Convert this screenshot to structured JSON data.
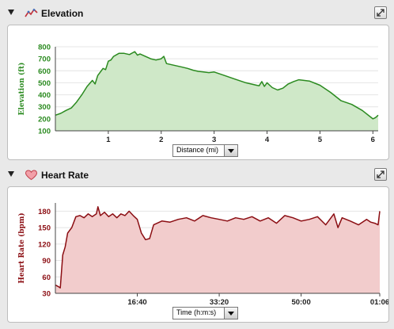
{
  "elevation_panel": {
    "title": "Elevation",
    "icon": "elevation-chart-icon",
    "x_axis_selector": "Distance (mi)",
    "accent": "#2a8a1f",
    "fill": "#cfe8c8"
  },
  "heart_panel": {
    "title": "Heart Rate",
    "icon": "heart-icon",
    "x_axis_selector": "Time (h:m:s)",
    "accent": "#8b0d12",
    "fill": "#f2cccc"
  },
  "chart_data": [
    {
      "type": "area",
      "title": "",
      "xlabel": "",
      "ylabel": "Elevation (ft)",
      "xlim": [
        0,
        6.1
      ],
      "ylim": [
        100,
        800
      ],
      "x_ticks": [
        "1",
        "2",
        "3",
        "4",
        "5",
        "6"
      ],
      "y_ticks": [
        "100",
        "200",
        "300",
        "400",
        "500",
        "600",
        "700",
        "800"
      ],
      "grid": true,
      "series": [
        {
          "x": [
            0,
            0.1,
            0.2,
            0.3,
            0.4,
            0.5,
            0.6,
            0.7,
            0.75,
            0.8,
            0.9,
            0.95,
            1.0,
            1.05,
            1.1,
            1.2,
            1.3,
            1.4,
            1.5,
            1.55,
            1.6,
            1.7,
            1.8,
            1.9,
            2.0,
            2.05,
            2.1,
            2.2,
            2.3,
            2.4,
            2.5,
            2.6,
            2.7,
            2.8,
            2.9,
            3.0,
            3.2,
            3.4,
            3.6,
            3.8,
            3.85,
            3.9,
            3.95,
            4.0,
            4.1,
            4.2,
            4.3,
            4.4,
            4.5,
            4.6,
            4.8,
            5.0,
            5.2,
            5.4,
            5.6,
            5.8,
            6.0,
            6.05,
            6.1
          ],
          "y": [
            230,
            245,
            270,
            290,
            340,
            400,
            470,
            520,
            490,
            560,
            620,
            610,
            680,
            690,
            720,
            745,
            745,
            735,
            760,
            730,
            740,
            720,
            700,
            690,
            700,
            720,
            660,
            650,
            640,
            630,
            620,
            605,
            595,
            590,
            585,
            590,
            560,
            530,
            500,
            480,
            475,
            510,
            470,
            500,
            460,
            440,
            455,
            490,
            510,
            525,
            515,
            480,
            420,
            350,
            320,
            270,
            200,
            210,
            230
          ]
        }
      ]
    },
    {
      "type": "area",
      "title": "",
      "xlabel": "",
      "ylabel": "Heart Rate (bpm)",
      "xlim": [
        0,
        3960
      ],
      "ylim": [
        30,
        195
      ],
      "x_ticks": [
        "16:40",
        "33:20",
        "50:00",
        "01:06"
      ],
      "x_tick_values": [
        1000,
        2000,
        3000,
        3960
      ],
      "y_ticks": [
        "30",
        "60",
        "90",
        "120",
        "150",
        "180"
      ],
      "grid": true,
      "series": [
        {
          "x": [
            0,
            40,
            60,
            90,
            120,
            150,
            200,
            250,
            300,
            350,
            400,
            450,
            500,
            520,
            550,
            600,
            650,
            700,
            750,
            800,
            850,
            900,
            950,
            1000,
            1050,
            1100,
            1150,
            1200,
            1300,
            1400,
            1500,
            1600,
            1700,
            1800,
            1900,
            2000,
            2100,
            2200,
            2300,
            2400,
            2500,
            2600,
            2700,
            2800,
            2900,
            3000,
            3100,
            3200,
            3300,
            3400,
            3450,
            3500,
            3600,
            3700,
            3800,
            3850,
            3900,
            3940,
            3960
          ],
          "y": [
            45,
            42,
            40,
            100,
            115,
            140,
            150,
            170,
            172,
            168,
            175,
            170,
            175,
            188,
            172,
            178,
            170,
            175,
            168,
            175,
            172,
            180,
            172,
            165,
            140,
            128,
            130,
            155,
            162,
            160,
            165,
            168,
            162,
            172,
            168,
            165,
            162,
            168,
            165,
            170,
            162,
            168,
            158,
            172,
            168,
            162,
            165,
            170,
            155,
            175,
            150,
            168,
            162,
            155,
            165,
            160,
            158,
            155,
            180
          ]
        }
      ]
    }
  ]
}
